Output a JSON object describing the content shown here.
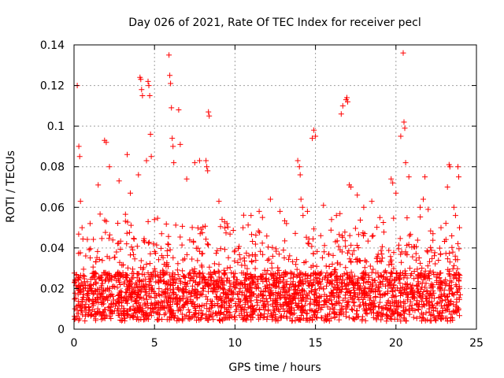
{
  "chart_data": {
    "type": "scatter",
    "title": "Day 026 of 2021, Rate Of TEC Index for receiver pecl",
    "xlabel": "GPS time / hours",
    "ylabel": "ROTI / TECUs",
    "xlim": [
      0,
      25
    ],
    "ylim": [
      0,
      0.14
    ],
    "x_ticks": [
      0,
      5,
      10,
      15,
      20,
      25
    ],
    "x_tick_labels": [
      "0",
      "5",
      "10",
      "15",
      "20",
      "25"
    ],
    "y_ticks": [
      0,
      0.02,
      0.04,
      0.06,
      0.08,
      0.1,
      0.12,
      0.14
    ],
    "y_tick_labels": [
      "0",
      "0.02",
      "0.04",
      "0.06",
      "0.08",
      "0.1",
      "0.12",
      "0.14"
    ],
    "grid": true,
    "marker": "+",
    "series": [
      {
        "name": "ROTI",
        "color": "#ff0000",
        "points": [
          [
            0.2,
            0.12
          ],
          [
            0.3,
            0.09
          ],
          [
            0.35,
            0.085
          ],
          [
            0.4,
            0.063
          ],
          [
            0.5,
            0.05
          ],
          [
            1.0,
            0.052
          ],
          [
            1.5,
            0.071
          ],
          [
            1.9,
            0.093
          ],
          [
            2.0,
            0.092
          ],
          [
            2.2,
            0.08
          ],
          [
            2.8,
            0.073
          ],
          [
            3.3,
            0.086
          ],
          [
            3.5,
            0.067
          ],
          [
            4.0,
            0.076
          ],
          [
            4.1,
            0.124
          ],
          [
            4.15,
            0.123
          ],
          [
            4.2,
            0.118
          ],
          [
            4.25,
            0.115
          ],
          [
            4.5,
            0.083
          ],
          [
            4.6,
            0.122
          ],
          [
            4.65,
            0.12
          ],
          [
            4.7,
            0.115
          ],
          [
            4.75,
            0.096
          ],
          [
            4.8,
            0.085
          ],
          [
            5.0,
            0.054
          ],
          [
            5.9,
            0.135
          ],
          [
            5.95,
            0.125
          ],
          [
            6.0,
            0.121
          ],
          [
            6.05,
            0.109
          ],
          [
            6.1,
            0.094
          ],
          [
            6.15,
            0.09
          ],
          [
            6.2,
            0.082
          ],
          [
            6.5,
            0.108
          ],
          [
            6.6,
            0.091
          ],
          [
            7.0,
            0.074
          ],
          [
            7.5,
            0.082
          ],
          [
            7.8,
            0.083
          ],
          [
            8.2,
            0.083
          ],
          [
            8.25,
            0.08
          ],
          [
            8.3,
            0.078
          ],
          [
            8.35,
            0.107
          ],
          [
            8.4,
            0.105
          ],
          [
            9.0,
            0.063
          ],
          [
            9.5,
            0.052
          ],
          [
            10.5,
            0.05
          ],
          [
            11.0,
            0.056
          ],
          [
            11.5,
            0.058
          ],
          [
            12.2,
            0.064
          ],
          [
            12.8,
            0.058
          ],
          [
            13.2,
            0.052
          ],
          [
            13.9,
            0.083
          ],
          [
            14.0,
            0.08
          ],
          [
            14.05,
            0.076
          ],
          [
            14.1,
            0.064
          ],
          [
            14.2,
            0.06
          ],
          [
            14.5,
            0.058
          ],
          [
            14.8,
            0.094
          ],
          [
            14.9,
            0.098
          ],
          [
            15.0,
            0.095
          ],
          [
            15.5,
            0.061
          ],
          [
            16.0,
            0.054
          ],
          [
            16.3,
            0.056
          ],
          [
            16.6,
            0.106
          ],
          [
            16.7,
            0.11
          ],
          [
            16.9,
            0.113
          ],
          [
            16.95,
            0.114
          ],
          [
            17.0,
            0.112
          ],
          [
            17.1,
            0.071
          ],
          [
            17.2,
            0.07
          ],
          [
            17.6,
            0.066
          ],
          [
            18.0,
            0.06
          ],
          [
            18.5,
            0.063
          ],
          [
            19.0,
            0.055
          ],
          [
            19.7,
            0.074
          ],
          [
            19.8,
            0.072
          ],
          [
            20.0,
            0.067
          ],
          [
            20.3,
            0.095
          ],
          [
            20.45,
            0.136
          ],
          [
            20.5,
            0.102
          ],
          [
            20.55,
            0.099
          ],
          [
            20.6,
            0.082
          ],
          [
            20.8,
            0.075
          ],
          [
            21.5,
            0.06
          ],
          [
            21.7,
            0.064
          ],
          [
            21.8,
            0.075
          ],
          [
            22.0,
            0.059
          ],
          [
            22.3,
            0.047
          ],
          [
            22.8,
            0.05
          ],
          [
            23.2,
            0.07
          ],
          [
            23.3,
            0.081
          ],
          [
            23.35,
            0.08
          ],
          [
            23.6,
            0.06
          ],
          [
            23.7,
            0.056
          ],
          [
            23.85,
            0.08
          ],
          [
            23.9,
            0.075
          ],
          [
            23.95,
            0.05
          ]
        ]
      }
    ]
  }
}
